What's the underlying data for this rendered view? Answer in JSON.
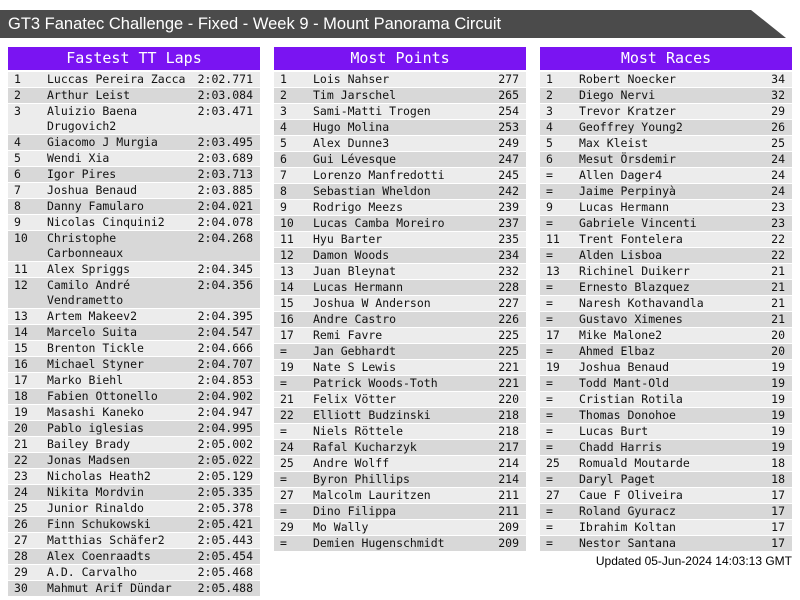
{
  "title_bar": {
    "title": "GT3 Fanatec Challenge - Fixed - Week 9 - Mount Panorama Circuit"
  },
  "colors": {
    "accent": "#7a14f2",
    "title_bar": "#4b4b4b",
    "row_light": "#ececec",
    "row_dark": "#d8d8d8"
  },
  "footer": {
    "updated": "Updated 05-Jun-2024 14:03:13 GMT"
  },
  "boards": [
    {
      "id": "fastest-tt-laps",
      "title": "Fastest TT Laps",
      "value_name": "lap-time",
      "rows": [
        {
          "rank": "1",
          "name": "Luccas Pereira Zacca",
          "value": "2:02.771"
        },
        {
          "rank": "2",
          "name": "Arthur Leist",
          "value": "2:03.084"
        },
        {
          "rank": "3",
          "name": "Aluizio Baena Drugovich2",
          "value": "2:03.471"
        },
        {
          "rank": "4",
          "name": "Giacomo J Murgia",
          "value": "2:03.495"
        },
        {
          "rank": "5",
          "name": "Wendi Xia",
          "value": "2:03.689"
        },
        {
          "rank": "6",
          "name": "Igor Pires",
          "value": "2:03.713"
        },
        {
          "rank": "7",
          "name": "Joshua Benaud",
          "value": "2:03.885"
        },
        {
          "rank": "8",
          "name": "Danny Famularo",
          "value": "2:04.021"
        },
        {
          "rank": "9",
          "name": "Nicolas Cinquini2",
          "value": "2:04.078"
        },
        {
          "rank": "10",
          "name": "Christophe Carbonneaux",
          "value": "2:04.268"
        },
        {
          "rank": "11",
          "name": "Alex Spriggs",
          "value": "2:04.345"
        },
        {
          "rank": "12",
          "name": "Camilo André Vendrametto",
          "value": "2:04.356"
        },
        {
          "rank": "13",
          "name": "Artem Makeev2",
          "value": "2:04.395"
        },
        {
          "rank": "14",
          "name": "Marcelo Suita",
          "value": "2:04.547"
        },
        {
          "rank": "15",
          "name": "Brenton Tickle",
          "value": "2:04.666"
        },
        {
          "rank": "16",
          "name": "Michael Styner",
          "value": "2:04.707"
        },
        {
          "rank": "17",
          "name": "Marko Biehl",
          "value": "2:04.853"
        },
        {
          "rank": "18",
          "name": "Fabien Ottonello",
          "value": "2:04.902"
        },
        {
          "rank": "19",
          "name": "Masashi Kaneko",
          "value": "2:04.947"
        },
        {
          "rank": "20",
          "name": "Pablo iglesias",
          "value": "2:04.995"
        },
        {
          "rank": "21",
          "name": "Bailey Brady",
          "value": "2:05.002"
        },
        {
          "rank": "22",
          "name": "Jonas Madsen",
          "value": "2:05.022"
        },
        {
          "rank": "23",
          "name": "Nicholas Heath2",
          "value": "2:05.129"
        },
        {
          "rank": "24",
          "name": "Nikita Mordvin",
          "value": "2:05.335"
        },
        {
          "rank": "25",
          "name": "Junior Rinaldo",
          "value": "2:05.378"
        },
        {
          "rank": "26",
          "name": "Finn Schukowski",
          "value": "2:05.421"
        },
        {
          "rank": "27",
          "name": "Matthias Schäfer2",
          "value": "2:05.443"
        },
        {
          "rank": "28",
          "name": "Alex Coenraadts",
          "value": "2:05.454"
        },
        {
          "rank": "29",
          "name": "A.D. Carvalho",
          "value": "2:05.468"
        },
        {
          "rank": "30",
          "name": "Mahmut Arif Dündar",
          "value": "2:05.488"
        }
      ]
    },
    {
      "id": "most-points",
      "title": "Most Points",
      "value_name": "points-value",
      "rows": [
        {
          "rank": "1",
          "name": "Lois Nahser",
          "value": "277"
        },
        {
          "rank": "2",
          "name": "Tim Jarschel",
          "value": "265"
        },
        {
          "rank": "3",
          "name": "Sami-Matti Trogen",
          "value": "254"
        },
        {
          "rank": "4",
          "name": "Hugo Molina",
          "value": "253"
        },
        {
          "rank": "5",
          "name": "Alex Dunne3",
          "value": "249"
        },
        {
          "rank": "6",
          "name": "Gui Lévesque",
          "value": "247"
        },
        {
          "rank": "7",
          "name": "Lorenzo Manfredotti",
          "value": "245"
        },
        {
          "rank": "8",
          "name": "Sebastian Wheldon",
          "value": "242"
        },
        {
          "rank": "9",
          "name": "Rodrigo Meezs",
          "value": "239"
        },
        {
          "rank": "10",
          "name": "Lucas Camba Moreiro",
          "value": "237"
        },
        {
          "rank": "11",
          "name": "Hyu Barter",
          "value": "235"
        },
        {
          "rank": "12",
          "name": "Damon Woods",
          "value": "234"
        },
        {
          "rank": "13",
          "name": "Juan Bleynat",
          "value": "232"
        },
        {
          "rank": "14",
          "name": "Lucas Hermann",
          "value": "228"
        },
        {
          "rank": "15",
          "name": "Joshua W Anderson",
          "value": "227"
        },
        {
          "rank": "16",
          "name": "Andre Castro",
          "value": "226"
        },
        {
          "rank": "17",
          "name": "Remi Favre",
          "value": "225"
        },
        {
          "rank": "=",
          "name": "Jan Gebhardt",
          "value": "225"
        },
        {
          "rank": "19",
          "name": "Nate S Lewis",
          "value": "221"
        },
        {
          "rank": "=",
          "name": "Patrick Woods-Toth",
          "value": "221"
        },
        {
          "rank": "21",
          "name": "Felix Vötter",
          "value": "220"
        },
        {
          "rank": "22",
          "name": "Elliott Budzinski",
          "value": "218"
        },
        {
          "rank": "=",
          "name": "Niels Röttele",
          "value": "218"
        },
        {
          "rank": "24",
          "name": "Rafal Kucharzyk",
          "value": "217"
        },
        {
          "rank": "25",
          "name": "Andre Wolff",
          "value": "214"
        },
        {
          "rank": "=",
          "name": "Byron Phillips",
          "value": "214"
        },
        {
          "rank": "27",
          "name": "Malcolm Lauritzen",
          "value": "211"
        },
        {
          "rank": "=",
          "name": "Dino Filippa",
          "value": "211"
        },
        {
          "rank": "29",
          "name": "Mo Wally",
          "value": "209"
        },
        {
          "rank": "=",
          "name": "Demien Hugenschmidt",
          "value": "209"
        }
      ]
    },
    {
      "id": "most-races",
      "title": "Most Races",
      "value_name": "races-value",
      "rows": [
        {
          "rank": "1",
          "name": "Robert Noecker",
          "value": "34"
        },
        {
          "rank": "2",
          "name": "Diego Nervi",
          "value": "32"
        },
        {
          "rank": "3",
          "name": "Trevor Kratzer",
          "value": "29"
        },
        {
          "rank": "4",
          "name": "Geoffrey Young2",
          "value": "26"
        },
        {
          "rank": "5",
          "name": "Max Kleist",
          "value": "25"
        },
        {
          "rank": "6",
          "name": "Mesut Örsdemir",
          "value": "24"
        },
        {
          "rank": "=",
          "name": "Allen Dager4",
          "value": "24"
        },
        {
          "rank": "=",
          "name": "Jaime Perpinyà",
          "value": "24"
        },
        {
          "rank": "9",
          "name": "Lucas Hermann",
          "value": "23"
        },
        {
          "rank": "=",
          "name": "Gabriele Vincenti",
          "value": "23"
        },
        {
          "rank": "11",
          "name": "Trent Fontelera",
          "value": "22"
        },
        {
          "rank": "=",
          "name": "Alden Lisboa",
          "value": "22"
        },
        {
          "rank": "13",
          "name": "Richinel Duikerr",
          "value": "21"
        },
        {
          "rank": "=",
          "name": "Ernesto Blazquez",
          "value": "21"
        },
        {
          "rank": "=",
          "name": "Naresh Kothavandla",
          "value": "21"
        },
        {
          "rank": "=",
          "name": "Gustavo Ximenes",
          "value": "21"
        },
        {
          "rank": "17",
          "name": "Mike Malone2",
          "value": "20"
        },
        {
          "rank": "=",
          "name": "Ahmed Elbaz",
          "value": "20"
        },
        {
          "rank": "19",
          "name": "Joshua Benaud",
          "value": "19"
        },
        {
          "rank": "=",
          "name": "Todd Mant-Old",
          "value": "19"
        },
        {
          "rank": "=",
          "name": "Cristian Rotila",
          "value": "19"
        },
        {
          "rank": "=",
          "name": "Thomas Donohoe",
          "value": "19"
        },
        {
          "rank": "=",
          "name": "Lucas Burt",
          "value": "19"
        },
        {
          "rank": "=",
          "name": "Chadd Harris",
          "value": "19"
        },
        {
          "rank": "25",
          "name": "Romuald Moutarde",
          "value": "18"
        },
        {
          "rank": "=",
          "name": "Daryl Paget",
          "value": "18"
        },
        {
          "rank": "27",
          "name": "Caue F Oliveira",
          "value": "17"
        },
        {
          "rank": "=",
          "name": "Roland Gyuracz",
          "value": "17"
        },
        {
          "rank": "=",
          "name": "Ibrahim Koltan",
          "value": "17"
        },
        {
          "rank": "=",
          "name": "Nestor Santana",
          "value": "17"
        }
      ]
    }
  ]
}
